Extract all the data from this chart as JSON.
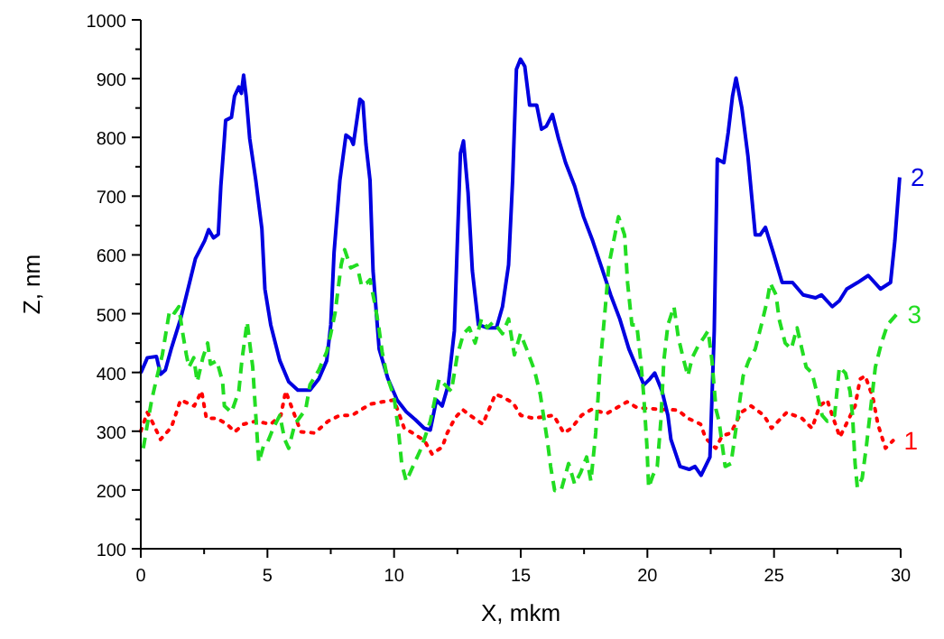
{
  "chart_data": {
    "type": "line",
    "xlabel": "X, mkm",
    "ylabel": "Z, nm",
    "xlim": [
      0,
      30
    ],
    "ylim": [
      100,
      1000
    ],
    "xticks": [
      0,
      {
        "value": 2.5,
        "label": null
      },
      5,
      {
        "value": 7.5,
        "label": null
      },
      10,
      {
        "value": 12.5,
        "label": null
      },
      15,
      {
        "value": 17.5,
        "label": null
      },
      20,
      {
        "value": 22.5,
        "label": null
      },
      25,
      {
        "value": 27.5,
        "label": null
      },
      30
    ],
    "yticks": [
      100,
      {
        "value": 150,
        "label": null
      },
      200,
      {
        "value": 250,
        "label": null
      },
      300,
      {
        "value": 350,
        "label": null
      },
      400,
      {
        "value": 450,
        "label": null
      },
      500,
      {
        "value": 550,
        "label": null
      },
      600,
      {
        "value": 650,
        "label": null
      },
      700,
      {
        "value": 750,
        "label": null
      },
      800,
      {
        "value": 850,
        "label": null
      },
      900,
      {
        "value": 950,
        "label": null
      },
      1000
    ],
    "grid": false,
    "marker": "none",
    "series": [
      {
        "name": "1",
        "color": "#ff0000",
        "line_style": "dotted",
        "x": [
          0,
          0.26,
          0.5,
          0.78,
          1.21,
          1.57,
          2.11,
          2.4,
          2.59,
          3.0,
          3.4,
          3.71,
          4.06,
          4.54,
          5.13,
          5.53,
          5.72,
          6.32,
          6.87,
          7.39,
          7.86,
          8.34,
          9.05,
          9.53,
          10.0,
          10.4,
          10.73,
          11.2,
          11.5,
          11.9,
          12.1,
          12.4,
          12.7,
          13.0,
          13.5,
          14.0,
          14.3,
          14.7,
          15.0,
          15.5,
          16.3,
          16.7,
          17.0,
          17.4,
          17.8,
          18.4,
          19.2,
          19.6,
          20.6,
          21.2,
          21.6,
          22.1,
          22.3,
          22.7,
          22.95,
          23.3,
          23.7,
          24.1,
          24.6,
          24.9,
          25.5,
          26.1,
          26.5,
          26.8,
          27.1,
          27.3,
          27.6,
          28.2,
          28.4,
          28.6,
          28.9,
          29.1,
          29.4,
          29.7
        ],
        "values": [
          300,
          332,
          312,
          286,
          307,
          353,
          343,
          368,
          322,
          322,
          312,
          299,
          312,
          317,
          312,
          327,
          368,
          299,
          297,
          317,
          327,
          327,
          346,
          350,
          353,
          305,
          297,
          284,
          261,
          273,
          297,
          322,
          337,
          327,
          312,
          363,
          358,
          348,
          327,
          322,
          327,
          297,
          305,
          327,
          337,
          330,
          350,
          340,
          337,
          336,
          322,
          312,
          288,
          271,
          292,
          297,
          332,
          343,
          327,
          305,
          332,
          322,
          305,
          343,
          353,
          327,
          290,
          343,
          389,
          394,
          358,
          312,
          271,
          284
        ]
      },
      {
        "name": "2",
        "color": "#0000e0",
        "line_style": "solid",
        "x": [
          0,
          0.26,
          0.62,
          0.78,
          0.97,
          1.2,
          1.57,
          1.92,
          2.16,
          2.52,
          2.68,
          2.87,
          3.06,
          3.16,
          3.3,
          3.35,
          3.58,
          3.7,
          3.87,
          3.97,
          4.06,
          4.16,
          4.3,
          4.54,
          4.78,
          4.9,
          5.13,
          5.49,
          5.84,
          6.2,
          6.68,
          7.03,
          7.34,
          7.5,
          7.63,
          7.86,
          8.1,
          8.29,
          8.39,
          8.53,
          8.65,
          8.77,
          8.89,
          9.05,
          9.17,
          9.41,
          9.76,
          10.12,
          10.48,
          10.83,
          11.19,
          11.43,
          11.67,
          11.9,
          12.14,
          12.38,
          12.5,
          12.62,
          12.74,
          12.92,
          13.09,
          13.33,
          13.68,
          14.04,
          14.28,
          14.52,
          14.68,
          14.83,
          14.99,
          15.16,
          15.35,
          15.63,
          15.82,
          16.01,
          16.25,
          16.49,
          16.77,
          17.13,
          17.48,
          17.84,
          18.2,
          18.55,
          18.91,
          19.27,
          19.62,
          19.86,
          20.1,
          20.29,
          20.58,
          20.81,
          20.93,
          21.29,
          21.65,
          21.88,
          22.12,
          22.47,
          22.64,
          22.76,
          23.02,
          23.19,
          23.36,
          23.5,
          23.73,
          23.97,
          24.26,
          24.45,
          24.66,
          24.97,
          25.32,
          25.73,
          26.15,
          26.64,
          26.87,
          27.3,
          27.58,
          27.87,
          28.3,
          28.72,
          29.2,
          29.6,
          29.77,
          29.96
        ],
        "values": [
          399,
          425,
          427,
          397,
          404,
          440,
          491,
          552,
          594,
          624,
          643,
          629,
          635,
          717,
          798,
          829,
          834,
          870,
          886,
          875,
          906,
          870,
          798,
          727,
          645,
          542,
          481,
          420,
          384,
          370,
          370,
          389,
          420,
          481,
          604,
          727,
          804,
          798,
          788,
          829,
          865,
          860,
          788,
          727,
          573,
          440,
          389,
          353,
          333,
          320,
          305,
          302,
          353,
          343,
          379,
          471,
          624,
          773,
          794,
          706,
          573,
          481,
          476,
          476,
          512,
          583,
          727,
          916,
          933,
          921,
          855,
          855,
          814,
          819,
          839,
          798,
          757,
          717,
          665,
          624,
          578,
          532,
          491,
          440,
          404,
          379,
          389,
          399,
          368,
          327,
          286,
          240,
          235,
          240,
          225,
          256,
          471,
          763,
          757,
          808,
          870,
          901,
          850,
          768,
          634,
          634,
          647,
          604,
          553,
          553,
          532,
          527,
          532,
          512,
          522,
          542,
          553,
          565,
          542,
          553,
          624,
          732
        ]
      },
      {
        "name": "3",
        "color": "#22dd22",
        "line_style": "dashed",
        "x": [
          0.1,
          0.26,
          0.43,
          0.62,
          0.85,
          1.14,
          1.33,
          1.5,
          1.64,
          1.8,
          1.9,
          2.09,
          2.23,
          2.45,
          2.64,
          2.75,
          3.0,
          3.23,
          3.3,
          3.58,
          3.87,
          3.99,
          4.2,
          4.3,
          4.42,
          4.54,
          4.66,
          4.85,
          5.0,
          5.25,
          5.49,
          5.68,
          5.84,
          6.08,
          6.51,
          6.68,
          7.03,
          7.34,
          7.5,
          7.67,
          7.82,
          7.91,
          8.05,
          8.29,
          8.53,
          8.72,
          8.92,
          9.05,
          9.24,
          9.4,
          9.53,
          9.72,
          10.0,
          10.17,
          10.3,
          10.48,
          11.07,
          11.43,
          11.78,
          12.26,
          12.5,
          12.74,
          12.97,
          13.2,
          13.45,
          13.68,
          13.92,
          14.28,
          14.52,
          14.75,
          14.99,
          15.23,
          15.54,
          15.77,
          16.06,
          16.18,
          16.34,
          16.59,
          16.89,
          17.13,
          17.37,
          17.6,
          17.77,
          17.96,
          18.15,
          18.32,
          18.48,
          18.67,
          18.86,
          19.1,
          19.22,
          19.39,
          19.58,
          19.74,
          19.86,
          19.98,
          20.05,
          20.22,
          20.39,
          20.53,
          20.65,
          20.81,
          21.05,
          21.22,
          21.41,
          21.6,
          21.77,
          22.0,
          22.24,
          22.4,
          22.55,
          22.71,
          22.83,
          23.07,
          23.3,
          23.54,
          23.78,
          24.0,
          24.26,
          24.5,
          24.73,
          24.85,
          25.08,
          25.2,
          25.44,
          25.68,
          25.91,
          26.1,
          26.27,
          26.5,
          26.68,
          26.9,
          27.1,
          27.39,
          27.58,
          27.82,
          28.0,
          28.1,
          28.2,
          28.29,
          28.48,
          28.65,
          28.81,
          29.0,
          29.24,
          29.48,
          29.84
        ],
        "values": [
          271,
          312,
          353,
          389,
          430,
          506,
          501,
          512,
          471,
          430,
          409,
          425,
          384,
          425,
          450,
          414,
          420,
          384,
          343,
          332,
          368,
          420,
          486,
          450,
          409,
          327,
          247,
          276,
          281,
          307,
          327,
          286,
          271,
          312,
          337,
          379,
          404,
          435,
          466,
          501,
          552,
          583,
          609,
          578,
          583,
          547,
          552,
          558,
          517,
          476,
          435,
          394,
          358,
          302,
          245,
          215,
          271,
          317,
          389,
          368,
          430,
          466,
          476,
          450,
          491,
          476,
          486,
          466,
          491,
          430,
          466,
          440,
          404,
          363,
          281,
          240,
          199,
          199,
          245,
          210,
          230,
          256,
          215,
          297,
          420,
          501,
          583,
          624,
          665,
          634,
          552,
          481,
          481,
          420,
          358,
          276,
          204,
          225,
          240,
          317,
          420,
          481,
          512,
          460,
          425,
          394,
          425,
          445,
          460,
          471,
          420,
          337,
          317,
          240,
          245,
          317,
          394,
          420,
          440,
          481,
          522,
          552,
          532,
          491,
          450,
          440,
          476,
          440,
          409,
          399,
          368,
          327,
          317,
          327,
          409,
          399,
          368,
          327,
          245,
          204,
          220,
          276,
          337,
          409,
          450,
          481,
          499
        ]
      }
    ]
  }
}
